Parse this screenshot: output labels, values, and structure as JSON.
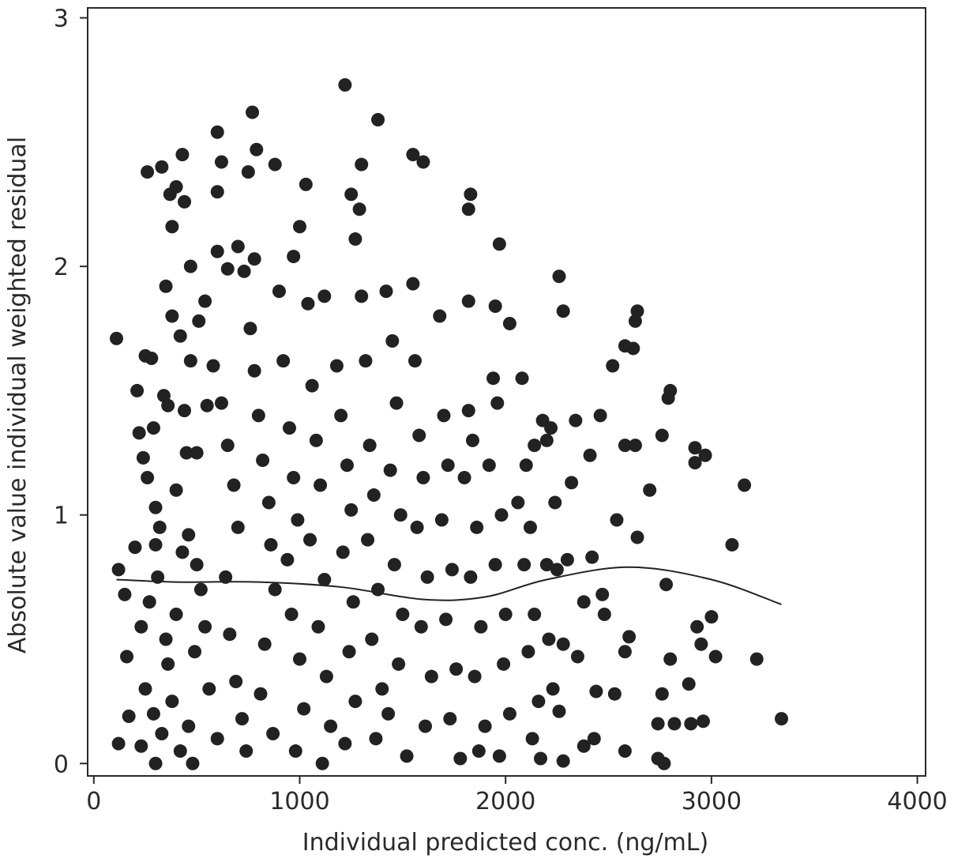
{
  "chart_data": {
    "type": "scatter",
    "x_label": "Individual predicted conc. (ng/mL)",
    "y_label": "Absolute value individual weighted residual",
    "xlim": [
      -30,
      4040
    ],
    "ylim": [
      -0.05,
      3.04
    ],
    "xticks": [
      0,
      1000,
      2000,
      3000,
      4000
    ],
    "yticks": [
      0,
      1,
      2,
      3
    ],
    "grid": false,
    "series": [
      {
        "type": "scatter",
        "color": "#222222",
        "points": [
          [
            1220,
            2.73
          ],
          [
            1380,
            2.59
          ],
          [
            770,
            2.62
          ],
          [
            600,
            2.54
          ],
          [
            790,
            2.47
          ],
          [
            430,
            2.45
          ],
          [
            1550,
            2.45
          ],
          [
            1600,
            2.42
          ],
          [
            1300,
            2.41
          ],
          [
            880,
            2.41
          ],
          [
            330,
            2.4
          ],
          [
            260,
            2.38
          ],
          [
            750,
            2.38
          ],
          [
            620,
            2.42
          ],
          [
            1030,
            2.33
          ],
          [
            400,
            2.32
          ],
          [
            370,
            2.29
          ],
          [
            600,
            2.3
          ],
          [
            1250,
            2.29
          ],
          [
            1830,
            2.29
          ],
          [
            440,
            2.26
          ],
          [
            1290,
            2.23
          ],
          [
            1820,
            2.23
          ],
          [
            380,
            2.16
          ],
          [
            1000,
            2.16
          ],
          [
            1270,
            2.11
          ],
          [
            1970,
            2.09
          ],
          [
            700,
            2.08
          ],
          [
            600,
            2.06
          ],
          [
            970,
            2.04
          ],
          [
            780,
            2.03
          ],
          [
            470,
            2.0
          ],
          [
            2260,
            1.96
          ],
          [
            650,
            1.99
          ],
          [
            730,
            1.98
          ],
          [
            350,
            1.92
          ],
          [
            1550,
            1.93
          ],
          [
            1420,
            1.9
          ],
          [
            2640,
            1.82
          ],
          [
            2280,
            1.82
          ],
          [
            2630,
            1.78
          ],
          [
            2020,
            1.77
          ],
          [
            1950,
            1.84
          ],
          [
            1820,
            1.86
          ],
          [
            1120,
            1.88
          ],
          [
            110,
            1.71
          ],
          [
            2580,
            1.68
          ],
          [
            2620,
            1.67
          ],
          [
            2520,
            1.6
          ],
          [
            2800,
            1.5
          ],
          [
            2790,
            1.47
          ],
          [
            2760,
            1.32
          ],
          [
            2340,
            1.38
          ],
          [
            2460,
            1.4
          ],
          [
            2410,
            1.24
          ],
          [
            2580,
            1.28
          ],
          [
            2630,
            1.28
          ],
          [
            2920,
            1.27
          ],
          [
            2970,
            1.24
          ],
          [
            2920,
            1.21
          ],
          [
            3160,
            1.12
          ],
          [
            2700,
            1.1
          ],
          [
            2540,
            0.98
          ],
          [
            2640,
            0.91
          ],
          [
            3100,
            0.88
          ],
          [
            2420,
            0.83
          ],
          [
            2780,
            0.72
          ],
          [
            2470,
            0.68
          ],
          [
            2380,
            0.65
          ],
          [
            2480,
            0.6
          ],
          [
            3000,
            0.59
          ],
          [
            2930,
            0.55
          ],
          [
            2600,
            0.51
          ],
          [
            2950,
            0.48
          ],
          [
            2580,
            0.45
          ],
          [
            2350,
            0.43
          ],
          [
            3020,
            0.43
          ],
          [
            3220,
            0.42
          ],
          [
            2800,
            0.42
          ],
          [
            2890,
            0.32
          ],
          [
            2440,
            0.29
          ],
          [
            2530,
            0.28
          ],
          [
            2760,
            0.28
          ],
          [
            2900,
            0.16
          ],
          [
            2960,
            0.17
          ],
          [
            2820,
            0.16
          ],
          [
            2740,
            0.16
          ],
          [
            3340,
            0.18
          ],
          [
            2260,
            0.21
          ],
          [
            2580,
            0.05
          ],
          [
            2740,
            0.02
          ],
          [
            2770,
            0.0
          ],
          [
            2430,
            0.1
          ],
          [
            2380,
            0.07
          ],
          [
            2280,
            0.01
          ],
          [
            120,
            0.08
          ],
          [
            120,
            0.78
          ],
          [
            150,
            0.68
          ],
          [
            160,
            0.43
          ],
          [
            170,
            0.19
          ],
          [
            200,
            0.87
          ],
          [
            210,
            1.5
          ],
          [
            230,
            0.07
          ],
          [
            300,
            0.0
          ],
          [
            480,
            0.0
          ],
          [
            220,
            1.33
          ],
          [
            240,
            1.23
          ],
          [
            250,
            1.64
          ],
          [
            280,
            1.63
          ],
          [
            290,
            1.35
          ],
          [
            260,
            1.15
          ],
          [
            300,
            1.03
          ],
          [
            320,
            0.95
          ],
          [
            340,
            1.48
          ],
          [
            360,
            1.44
          ],
          [
            380,
            1.8
          ],
          [
            420,
            1.72
          ],
          [
            440,
            1.42
          ],
          [
            470,
            1.62
          ],
          [
            500,
            1.25
          ],
          [
            510,
            1.78
          ],
          [
            540,
            1.86
          ],
          [
            550,
            1.44
          ],
          [
            270,
            0.65
          ],
          [
            230,
            0.55
          ],
          [
            250,
            0.3
          ],
          [
            290,
            0.2
          ],
          [
            330,
            0.12
          ],
          [
            360,
            0.4
          ],
          [
            400,
            0.6
          ],
          [
            430,
            0.85
          ],
          [
            460,
            0.92
          ],
          [
            310,
            0.75
          ],
          [
            350,
            0.5
          ],
          [
            380,
            0.25
          ],
          [
            420,
            0.05
          ],
          [
            460,
            0.15
          ],
          [
            490,
            0.45
          ],
          [
            520,
            0.7
          ],
          [
            300,
            0.88
          ],
          [
            400,
            1.1
          ],
          [
            450,
            1.25
          ],
          [
            500,
            0.8
          ],
          [
            540,
            0.55
          ],
          [
            560,
            0.3
          ],
          [
            600,
            0.1
          ],
          [
            580,
            1.6
          ],
          [
            620,
            1.45
          ],
          [
            650,
            1.28
          ],
          [
            680,
            1.12
          ],
          [
            700,
            0.95
          ],
          [
            640,
            0.75
          ],
          [
            660,
            0.52
          ],
          [
            690,
            0.33
          ],
          [
            720,
            0.18
          ],
          [
            740,
            0.05
          ],
          [
            760,
            1.75
          ],
          [
            780,
            1.58
          ],
          [
            800,
            1.4
          ],
          [
            820,
            1.22
          ],
          [
            850,
            1.05
          ],
          [
            860,
            0.88
          ],
          [
            880,
            0.7
          ],
          [
            830,
            0.48
          ],
          [
            810,
            0.28
          ],
          [
            870,
            0.12
          ],
          [
            900,
            1.9
          ],
          [
            920,
            1.62
          ],
          [
            950,
            1.35
          ],
          [
            970,
            1.15
          ],
          [
            990,
            0.98
          ],
          [
            940,
            0.82
          ],
          [
            960,
            0.6
          ],
          [
            1000,
            0.42
          ],
          [
            1020,
            0.22
          ],
          [
            980,
            0.05
          ],
          [
            1040,
            1.85
          ],
          [
            1060,
            1.52
          ],
          [
            1080,
            1.3
          ],
          [
            1100,
            1.12
          ],
          [
            1050,
            0.9
          ],
          [
            1120,
            0.74
          ],
          [
            1090,
            0.55
          ],
          [
            1130,
            0.35
          ],
          [
            1150,
            0.15
          ],
          [
            1110,
            0.0
          ],
          [
            1180,
            1.6
          ],
          [
            1200,
            1.4
          ],
          [
            1230,
            1.2
          ],
          [
            1250,
            1.02
          ],
          [
            1210,
            0.85
          ],
          [
            1260,
            0.65
          ],
          [
            1240,
            0.45
          ],
          [
            1270,
            0.25
          ],
          [
            1220,
            0.08
          ],
          [
            1300,
            1.88
          ],
          [
            1320,
            1.62
          ],
          [
            1340,
            1.28
          ],
          [
            1360,
            1.08
          ],
          [
            1330,
            0.9
          ],
          [
            1380,
            0.7
          ],
          [
            1350,
            0.5
          ],
          [
            1400,
            0.3
          ],
          [
            1370,
            0.1
          ],
          [
            1450,
            1.7
          ],
          [
            1470,
            1.45
          ],
          [
            1440,
            1.18
          ],
          [
            1490,
            1.0
          ],
          [
            1460,
            0.8
          ],
          [
            1500,
            0.6
          ],
          [
            1480,
            0.4
          ],
          [
            1430,
            0.2
          ],
          [
            1520,
            0.03
          ],
          [
            1560,
            1.62
          ],
          [
            1580,
            1.32
          ],
          [
            1600,
            1.15
          ],
          [
            1570,
            0.95
          ],
          [
            1620,
            0.75
          ],
          [
            1590,
            0.55
          ],
          [
            1640,
            0.35
          ],
          [
            1610,
            0.15
          ],
          [
            1680,
            1.8
          ],
          [
            1700,
            1.4
          ],
          [
            1720,
            1.2
          ],
          [
            1690,
            0.98
          ],
          [
            1740,
            0.78
          ],
          [
            1710,
            0.58
          ],
          [
            1760,
            0.38
          ],
          [
            1730,
            0.18
          ],
          [
            1780,
            0.02
          ],
          [
            1820,
            1.42
          ],
          [
            1840,
            1.3
          ],
          [
            1800,
            1.15
          ],
          [
            1860,
            0.95
          ],
          [
            1830,
            0.75
          ],
          [
            1880,
            0.55
          ],
          [
            1850,
            0.35
          ],
          [
            1900,
            0.15
          ],
          [
            1870,
            0.05
          ],
          [
            1940,
            1.55
          ],
          [
            1960,
            1.45
          ],
          [
            1920,
            1.2
          ],
          [
            1980,
            1.0
          ],
          [
            1950,
            0.8
          ],
          [
            2000,
            0.6
          ],
          [
            1990,
            0.4
          ],
          [
            2020,
            0.2
          ],
          [
            1970,
            0.03
          ],
          [
            2080,
            1.55
          ],
          [
            2100,
            1.2
          ],
          [
            2060,
            1.05
          ],
          [
            2120,
            0.95
          ],
          [
            2090,
            0.8
          ],
          [
            2140,
            0.6
          ],
          [
            2110,
            0.45
          ],
          [
            2160,
            0.25
          ],
          [
            2130,
            0.1
          ],
          [
            2180,
            1.38
          ],
          [
            2200,
            1.3
          ],
          [
            2220,
            1.35
          ],
          [
            2240,
            1.05
          ],
          [
            2200,
            0.8
          ],
          [
            2250,
            0.78
          ],
          [
            2210,
            0.5
          ],
          [
            2280,
            0.48
          ],
          [
            2230,
            0.3
          ],
          [
            2170,
            0.02
          ],
          [
            2300,
            0.82
          ],
          [
            2320,
            1.13
          ],
          [
            2140,
            1.28
          ]
        ]
      },
      {
        "type": "line",
        "color": "#222222",
        "x": [
          110,
          400,
          800,
          1200,
          1600,
          1900,
          2200,
          2600,
          3000,
          3340
        ],
        "y": [
          0.74,
          0.73,
          0.73,
          0.71,
          0.66,
          0.67,
          0.74,
          0.79,
          0.74,
          0.64
        ]
      }
    ]
  }
}
